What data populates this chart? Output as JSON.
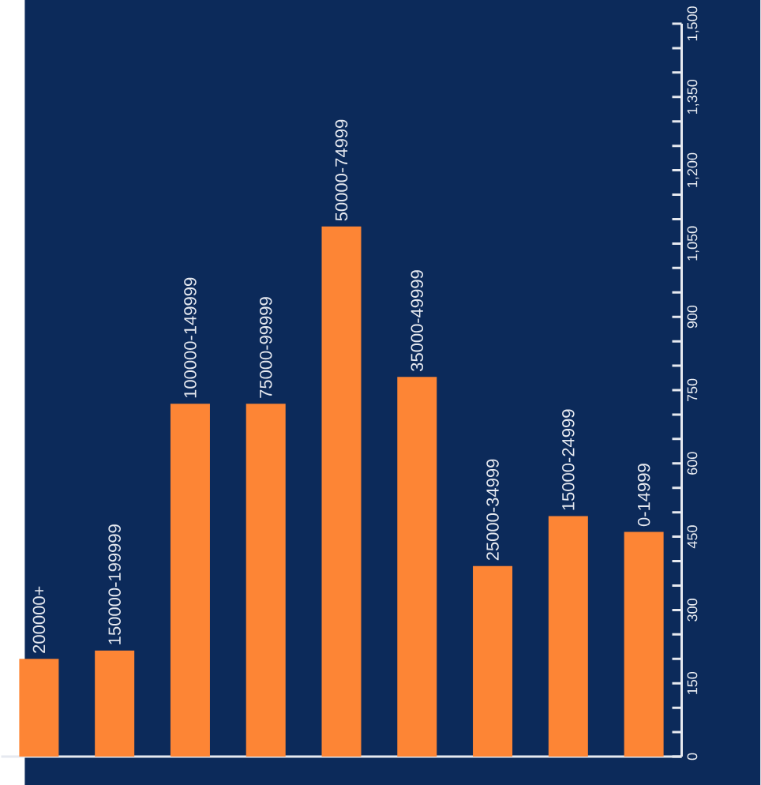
{
  "chart_data": {
    "type": "bar",
    "categories": [
      "200000+",
      "150000-199999",
      "100000-149999",
      "75000-99999",
      "50000-74999",
      "35000-49999",
      "25000-34999",
      "15000-24999",
      "0-14999"
    ],
    "values": [
      200,
      217,
      722,
      722,
      1085,
      777,
      390,
      492,
      460
    ],
    "color": "#fd8535",
    "ylim": [
      0,
      1500
    ],
    "yticks": [
      0,
      150,
      300,
      450,
      600,
      750,
      900,
      {
        "value": 1050,
        "label": "1,050"
      },
      {
        "value": 1200,
        "label": "1,200"
      },
      {
        "value": 1350,
        "label": "1,350"
      },
      {
        "value": 1500,
        "label": "1,500"
      }
    ],
    "grid": false
  }
}
